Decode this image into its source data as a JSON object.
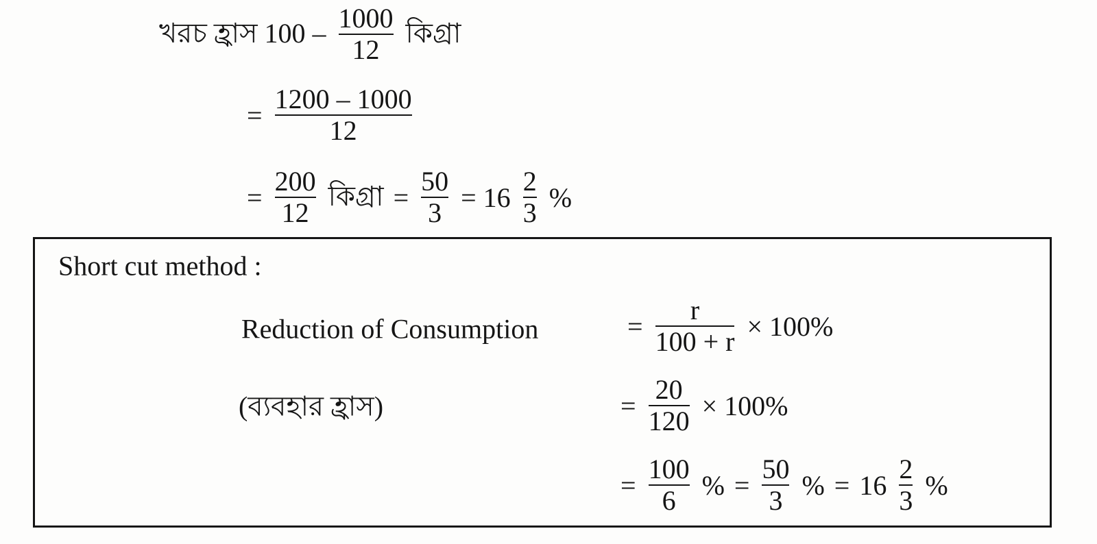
{
  "derivation": {
    "lines": [
      [
        "খরচ হ্রাস 100 –",
        {
          "num": "1000",
          "den": "12"
        },
        "কিগ্রা"
      ],
      [
        "=",
        {
          "num": "1200 – 1000",
          "den": "12"
        }
      ],
      [
        "=",
        {
          "num": "200",
          "den": "12"
        },
        "কিগ্রা",
        "=",
        {
          "num": "50",
          "den": "3"
        },
        "= 16",
        {
          "num": "2",
          "den": "3"
        },
        "%"
      ]
    ]
  },
  "shortcut": {
    "heading": "Short cut method :",
    "rows": [
      {
        "label": "Reduction of Consumption",
        "expr": [
          "=",
          {
            "num": "r",
            "den": "100 + r"
          },
          "× 100%"
        ]
      },
      {
        "label": "(ব্যবহার হ্রাস)",
        "expr": [
          "=",
          {
            "num": "20",
            "den": "120"
          },
          "× 100%"
        ]
      },
      {
        "expr": [
          "=",
          {
            "num": "100",
            "den": "6"
          },
          "%",
          "=",
          {
            "num": "50",
            "den": "3"
          },
          "%",
          "=",
          "16",
          {
            "num": "2",
            "den": "3"
          },
          "%"
        ]
      }
    ]
  }
}
